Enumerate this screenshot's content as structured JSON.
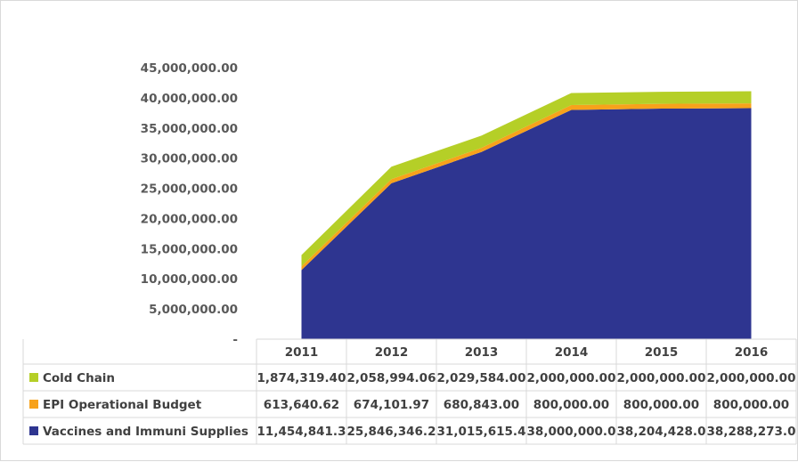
{
  "chart_data": {
    "type": "area",
    "stacked": true,
    "categories": [
      "2011",
      "2012",
      "2013",
      "2014",
      "2015",
      "2016"
    ],
    "series": [
      {
        "name": "Vaccines and Immuni Supplies",
        "color": "#2e3590",
        "values": [
          11454841.3,
          25846346.2,
          31015615.4,
          38000000.0,
          38204428.0,
          38288273.0
        ],
        "labels": [
          "11,454,841.3",
          "25,846,346.2",
          "31,015,615.4",
          "38,000,000.0",
          "38,204,428.0",
          "38,288,273.0"
        ]
      },
      {
        "name": "EPI Operational Budget",
        "color": "#f7a21b",
        "values": [
          613640.62,
          674101.97,
          680843.0,
          800000.0,
          800000.0,
          800000.0
        ],
        "labels": [
          "613,640.62",
          "674,101.97",
          "680,843.00",
          "800,000.00",
          "800,000.00",
          "800,000.00"
        ]
      },
      {
        "name": "Cold Chain",
        "color": "#b5cf27",
        "values": [
          1874319.4,
          2058994.06,
          2029584.0,
          2000000.0,
          2000000.0,
          2000000.0
        ],
        "labels": [
          "1,874,319.40",
          "2,058,994.06",
          "2,029,584.00",
          "2,000,000.00",
          "2,000,000.00",
          "2,000,000.00"
        ]
      }
    ],
    "yaxis": {
      "ylim": [
        0,
        45000000
      ],
      "ticks": [
        0,
        5000000,
        10000000,
        15000000,
        20000000,
        25000000,
        30000000,
        35000000,
        40000000,
        45000000
      ],
      "tick_labels": [
        "-",
        "5,000,000.00",
        "10,000,000.00",
        "15,000,000.00",
        "20,000,000.00",
        "25,000,000.00",
        "30,000,000.00",
        "35,000,000.00",
        "40,000,000.00",
        "45,000,000.00"
      ]
    },
    "grid": false,
    "data_table": true,
    "table_row_order": [
      "Cold Chain",
      "EPI Operational Budget",
      "Vaccines and Immuni Supplies"
    ]
  }
}
